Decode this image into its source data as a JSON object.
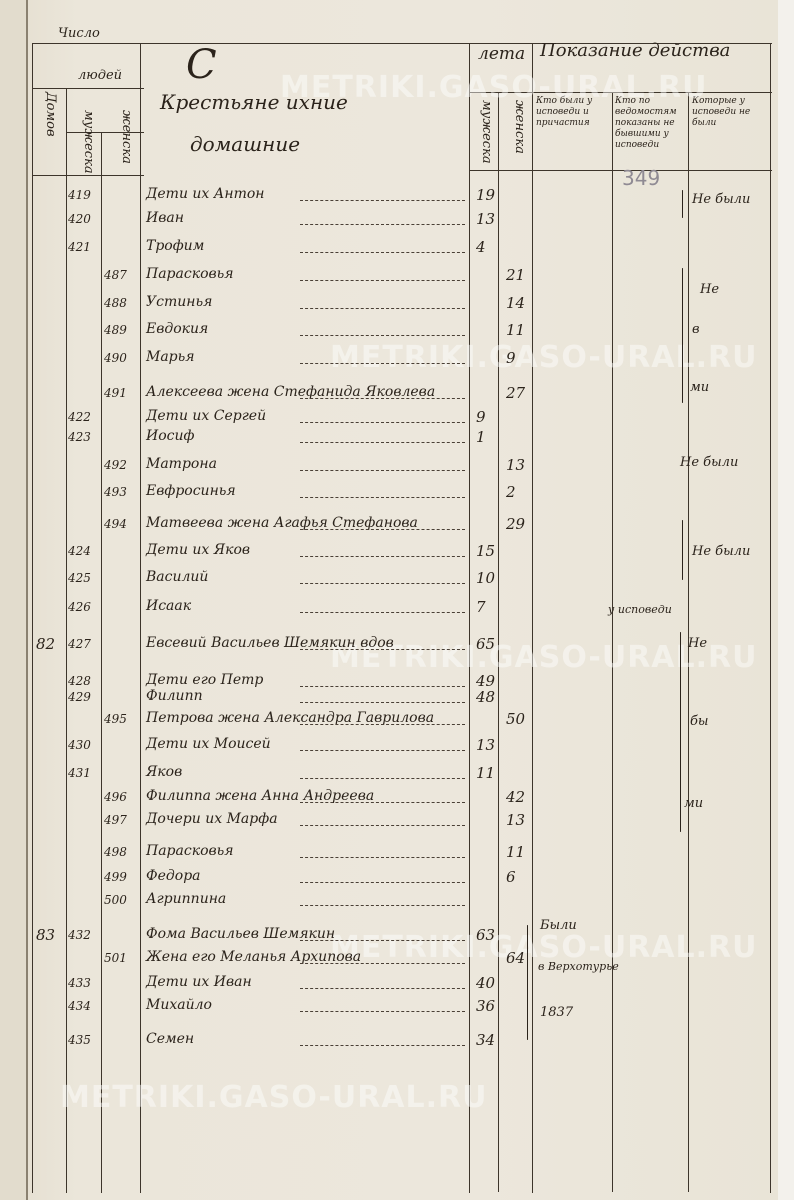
{
  "header": {
    "chislo": "Число",
    "domov": "Домов",
    "lyudey": "людей",
    "muzheska": "мужеска",
    "zhenska": "женска",
    "title_initial": "С",
    "title_line1": "Крестьяне ихние",
    "title_line2": "домашние",
    "leta": "лета",
    "leta_muzheska": "мужеска",
    "leta_zhenska": "женска",
    "pokazanie": "Показание действа",
    "col1": "Кто были у исповеди и причастия",
    "col2": "Кто по ведомостям показаны не бывшими у исповеди",
    "col3": "Которые у исповеди не были"
  },
  "page_number_pencil": "349",
  "watermark": "METRIKI.GASO-URAL.RU",
  "rows": [
    {
      "dom": "",
      "m": "419",
      "f": "",
      "name": "Дети их Антон",
      "age_m": "19",
      "age_f": ""
    },
    {
      "dom": "",
      "m": "420",
      "f": "",
      "name": "Иван",
      "age_m": "13",
      "age_f": ""
    },
    {
      "dom": "",
      "m": "421",
      "f": "",
      "name": "Трофим",
      "age_m": "4",
      "age_f": ""
    },
    {
      "dom": "",
      "m": "",
      "f": "487",
      "name": "Парасковья",
      "age_m": "",
      "age_f": "21"
    },
    {
      "dom": "",
      "m": "",
      "f": "488",
      "name": "Устинья",
      "age_m": "",
      "age_f": "14"
    },
    {
      "dom": "",
      "m": "",
      "f": "489",
      "name": "Евдокия",
      "age_m": "",
      "age_f": "11"
    },
    {
      "dom": "",
      "m": "",
      "f": "490",
      "name": "Марья",
      "age_m": "",
      "age_f": "9"
    },
    {
      "dom": "",
      "m": "",
      "f": "491",
      "name": "Алексеева жена Стефанида Яковлева",
      "age_m": "",
      "age_f": "27"
    },
    {
      "dom": "",
      "m": "422",
      "f": "",
      "name": "Дети их Сергей",
      "age_m": "9",
      "age_f": ""
    },
    {
      "dom": "",
      "m": "423",
      "f": "",
      "name": "Иосиф",
      "age_m": "1",
      "age_f": ""
    },
    {
      "dom": "",
      "m": "",
      "f": "492",
      "name": "Матрона",
      "age_m": "",
      "age_f": "13"
    },
    {
      "dom": "",
      "m": "",
      "f": "493",
      "name": "Евфросинья",
      "age_m": "",
      "age_f": "2"
    },
    {
      "dom": "",
      "m": "",
      "f": "494",
      "name": "Матвеева жена Агафья Стефанова",
      "age_m": "",
      "age_f": "29"
    },
    {
      "dom": "",
      "m": "424",
      "f": "",
      "name": "Дети их Яков",
      "age_m": "15",
      "age_f": ""
    },
    {
      "dom": "",
      "m": "425",
      "f": "",
      "name": "Василий",
      "age_m": "10",
      "age_f": ""
    },
    {
      "dom": "",
      "m": "426",
      "f": "",
      "name": "Исаак",
      "age_m": "7",
      "age_f": ""
    },
    {
      "dom": "82",
      "m": "427",
      "f": "",
      "name": "Евсевий Васильев Шемякин вдов",
      "age_m": "65",
      "age_f": ""
    },
    {
      "dom": "",
      "m": "428",
      "f": "",
      "name": "Дети его Петр",
      "age_m": "49",
      "age_f": ""
    },
    {
      "dom": "",
      "m": "429",
      "f": "",
      "name": "Филипп",
      "age_m": "48",
      "age_f": ""
    },
    {
      "dom": "",
      "m": "",
      "f": "495",
      "name": "Петрова жена Александра Гаврилова",
      "age_m": "",
      "age_f": "50"
    },
    {
      "dom": "",
      "m": "430",
      "f": "",
      "name": "Дети их Моисей",
      "age_m": "13",
      "age_f": ""
    },
    {
      "dom": "",
      "m": "431",
      "f": "",
      "name": "Яков",
      "age_m": "11",
      "age_f": ""
    },
    {
      "dom": "",
      "m": "",
      "f": "496",
      "name": "Филиппа жена Анна Андреева",
      "age_m": "",
      "age_f": "42"
    },
    {
      "dom": "",
      "m": "",
      "f": "497",
      "name": "Дочери их Марфа",
      "age_m": "",
      "age_f": "13"
    },
    {
      "dom": "",
      "m": "",
      "f": "498",
      "name": "Парасковья",
      "age_m": "",
      "age_f": "11"
    },
    {
      "dom": "",
      "m": "",
      "f": "499",
      "name": "Федора",
      "age_m": "",
      "age_f": "6"
    },
    {
      "dom": "",
      "m": "",
      "f": "500",
      "name": "Агриппина",
      "age_m": "",
      "age_f": ""
    },
    {
      "dom": "83",
      "m": "432",
      "f": "",
      "name": "Фома Васильев Шемякин",
      "age_m": "63",
      "age_f": ""
    },
    {
      "dom": "",
      "m": "",
      "f": "501",
      "name": "Жена его Меланья Архипова",
      "age_m": "",
      "age_f": "64"
    },
    {
      "dom": "",
      "m": "433",
      "f": "",
      "name": "Дети их Иван",
      "age_m": "40",
      "age_f": ""
    },
    {
      "dom": "",
      "m": "434",
      "f": "",
      "name": "Михайло",
      "age_m": "36",
      "age_f": ""
    },
    {
      "dom": "",
      "m": "435",
      "f": "",
      "name": "Семен",
      "age_m": "34",
      "age_f": ""
    }
  ],
  "remarks": {
    "r1": "Не были",
    "r2a": "Не",
    "r2b": "в",
    "r2c": "ми",
    "r3": "Не были",
    "r4": "Не были",
    "r5": "у исповеди",
    "r6a": "Не",
    "r6b": "бы",
    "r6c": "ми",
    "r7a": "Были",
    "r7b": "в Верхотурье",
    "r7c": "1837"
  }
}
